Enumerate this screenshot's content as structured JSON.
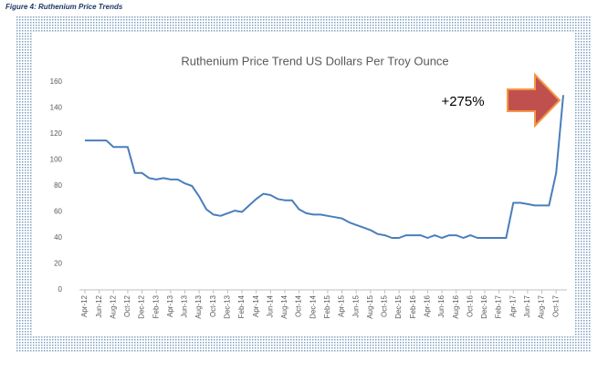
{
  "caption": "Figure 4: Ruthenium Price Trends",
  "chart_data": {
    "type": "line",
    "title": "Ruthenium Price Trend US Dollars Per Troy Ounce",
    "annotation": "+275%",
    "categories": [
      "Apr-12",
      null,
      "Jun-12",
      null,
      "Aug-12",
      null,
      "Oct-12",
      null,
      "Dec-12",
      null,
      "Feb-13",
      null,
      "Apr-13",
      null,
      "Jun-13",
      null,
      "Aug-13",
      null,
      "Oct-13",
      null,
      "Dec-13",
      null,
      "Feb-14",
      null,
      "Apr-14",
      null,
      "Jun-14",
      null,
      "Aug-14",
      null,
      "Oct-14",
      null,
      "Dec-14",
      null,
      "Feb-15",
      null,
      "Apr-15",
      null,
      "Jun-15",
      null,
      "Aug-15",
      null,
      "Oct-15",
      null,
      "Dec-15",
      null,
      "Feb-16",
      null,
      "Apr-16",
      null,
      "Jun-16",
      null,
      "Aug-16",
      null,
      "Oct-16",
      null,
      "Dec-16",
      null,
      "Feb-17",
      null,
      "Apr-17",
      null,
      "Jun-17",
      null,
      "Aug-17",
      null,
      "Oct-17",
      null
    ],
    "values": [
      115,
      115,
      115,
      115,
      110,
      110,
      110,
      90,
      90,
      86,
      85,
      86,
      85,
      85,
      82,
      80,
      72,
      62,
      58,
      57,
      59,
      61,
      60,
      65,
      70,
      74,
      73,
      70,
      69,
      69,
      62,
      59,
      58,
      58,
      57,
      56,
      55,
      52,
      50,
      48,
      46,
      43,
      42,
      40,
      40,
      42,
      42,
      42,
      40,
      42,
      40,
      42,
      42,
      40,
      42,
      40,
      40,
      40,
      40,
      40,
      67,
      67,
      66,
      65,
      65,
      65,
      90,
      150
    ],
    "color": "#4a7ebb",
    "ylim": [
      0,
      160
    ],
    "yticks": [
      0,
      20,
      40,
      60,
      80,
      100,
      120,
      140,
      160
    ],
    "grid": false
  }
}
